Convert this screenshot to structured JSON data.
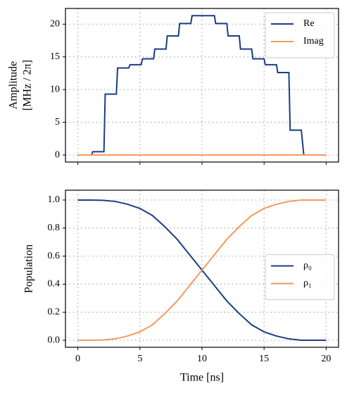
{
  "chart_data": [
    {
      "type": "line",
      "ylabel": [
        "Amplitude",
        "[MHz / 2π]"
      ],
      "series": [
        {
          "name": "Re",
          "color": "#1b3f82",
          "x": [
            0,
            1.1,
            1.2,
            2.1,
            2.2,
            3.1,
            3.2,
            4.1,
            4.2,
            5.1,
            5.2,
            6.1,
            6.2,
            7.1,
            7.2,
            8.1,
            8.2,
            9.1,
            9.2,
            11.0,
            11.1,
            12.0,
            12.1,
            13.0,
            13.1,
            14.0,
            14.1,
            15.0,
            15.1,
            16.0,
            16.1,
            17.0,
            17.1,
            18.0,
            18.2,
            20
          ],
          "values": [
            0,
            0,
            0.5,
            0.5,
            9.3,
            9.3,
            13.3,
            13.3,
            13.8,
            13.8,
            14.7,
            14.7,
            16.2,
            16.2,
            18.2,
            18.2,
            20.1,
            20.1,
            21.3,
            21.3,
            20.1,
            20.1,
            18.2,
            18.2,
            16.2,
            16.2,
            14.7,
            14.7,
            13.8,
            13.8,
            12.6,
            12.6,
            3.8,
            3.8,
            0,
            0
          ]
        },
        {
          "name": "Imag",
          "color": "#f59a5c",
          "x": [
            0,
            20
          ],
          "values": [
            0,
            0
          ]
        }
      ],
      "xlim": [
        -1,
        21
      ],
      "xticks": [
        0,
        5,
        10,
        15,
        20
      ],
      "xticklabels": false,
      "ylim": [
        -1.07,
        22.4
      ],
      "yticks": [
        0,
        5,
        10,
        15,
        20
      ],
      "grid": true,
      "legend": "upper-right"
    },
    {
      "type": "line",
      "xlabel": "Time [ns]",
      "ylabel": [
        "Population"
      ],
      "x": [
        0,
        1,
        2,
        3,
        4,
        5,
        6,
        7,
        8,
        9,
        10,
        11,
        12,
        13,
        14,
        15,
        16,
        17,
        18,
        19,
        20
      ],
      "series": [
        {
          "name": "ρ₀",
          "color": "#1b3f82",
          "values": [
            1,
            1,
            0.998,
            0.99,
            0.97,
            0.94,
            0.89,
            0.81,
            0.72,
            0.61,
            0.5,
            0.39,
            0.28,
            0.19,
            0.11,
            0.06,
            0.03,
            0.01,
            0,
            0,
            0
          ]
        },
        {
          "name": "ρ₁",
          "color": "#f59a5c",
          "values": [
            0,
            0,
            0.002,
            0.01,
            0.03,
            0.06,
            0.11,
            0.19,
            0.28,
            0.39,
            0.5,
            0.61,
            0.72,
            0.81,
            0.89,
            0.94,
            0.97,
            0.99,
            1,
            1,
            1
          ]
        }
      ],
      "xlim": [
        -1,
        21
      ],
      "xticks": [
        0,
        5,
        10,
        15,
        20
      ],
      "xticklabels": true,
      "ylim": [
        -0.05,
        1.07
      ],
      "yticks": [
        {
          "value": 0,
          "label": "0.0"
        },
        0.2,
        0.4,
        0.6,
        0.8,
        {
          "value": 1,
          "label": "1.0"
        }
      ],
      "grid": true,
      "legend": "center-right"
    }
  ]
}
